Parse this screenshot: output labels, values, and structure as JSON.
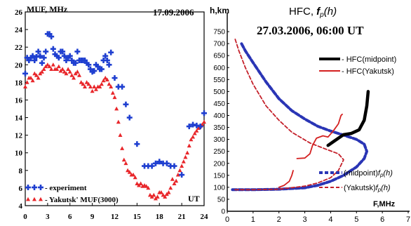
{
  "chart_data": [
    {
      "type": "scatter",
      "date": "17.09.2006",
      "ylabel": "MUF, MHz",
      "xlabel": "UT",
      "xlim": [
        0,
        24
      ],
      "ylim": [
        4,
        26
      ],
      "xticks": [
        "0",
        "3",
        "6",
        "9",
        "12",
        "15",
        "18",
        "21",
        "24"
      ],
      "yticks": [
        "4",
        "6",
        "8",
        "10",
        "12",
        "14",
        "16",
        "18",
        "20",
        "22",
        "24",
        "26"
      ],
      "grid": false,
      "legend_position": "bottom-left",
      "series": [
        {
          "name": "- experiment",
          "marker": "plus",
          "color": "#1f3fd0",
          "x": [
            0.0,
            0.25,
            0.5,
            0.75,
            1.0,
            1.25,
            1.5,
            1.75,
            2.0,
            2.25,
            2.5,
            2.75,
            3.0,
            3.25,
            3.5,
            3.75,
            4.0,
            4.25,
            4.5,
            4.75,
            5.0,
            5.25,
            5.5,
            5.75,
            6.0,
            6.25,
            6.5,
            6.75,
            7.0,
            7.25,
            7.5,
            7.75,
            8.0,
            8.25,
            8.5,
            8.75,
            9.0,
            9.25,
            9.5,
            9.75,
            10.0,
            10.25,
            10.5,
            10.75,
            11.0,
            11.25,
            11.5,
            12.0,
            12.5,
            13.0,
            13.5,
            14.0,
            15.0,
            16.0,
            16.5,
            17.0,
            17.5,
            18.0,
            18.5,
            19.0,
            19.5,
            20.0,
            21.0,
            22.0,
            22.5,
            23.0,
            23.5,
            24.0
          ],
          "y": [
            19.0,
            20.8,
            20.5,
            20.8,
            21.0,
            20.5,
            20.9,
            21.5,
            21.0,
            20.2,
            20.8,
            21.5,
            23.5,
            23.5,
            23.2,
            21.8,
            21.2,
            21.0,
            20.8,
            21.5,
            21.5,
            21.0,
            20.5,
            20.8,
            21.0,
            20.5,
            20.2,
            20.2,
            21.5,
            20.5,
            20.5,
            20.5,
            20.5,
            20.2,
            20.0,
            19.5,
            19.2,
            19.3,
            20.0,
            19.8,
            19.5,
            19.5,
            20.5,
            21.0,
            20.5,
            20.0,
            21.4,
            18.5,
            17.5,
            17.5,
            15.5,
            14.0,
            11.0,
            8.5,
            8.5,
            8.5,
            8.8,
            9.0,
            8.8,
            8.8,
            8.5,
            8.5,
            7.5,
            13.0,
            13.2,
            13.1,
            13.0,
            14.5
          ]
        },
        {
          "name": "- Yakutsk' MUF(3000)",
          "marker": "triangle",
          "color": "#e8262a",
          "x": [
            0.0,
            0.25,
            0.5,
            0.75,
            1.0,
            1.25,
            1.5,
            1.75,
            2.0,
            2.25,
            2.5,
            2.75,
            3.0,
            3.25,
            3.5,
            3.75,
            4.0,
            4.25,
            4.5,
            4.75,
            5.0,
            5.25,
            5.5,
            5.75,
            6.0,
            6.25,
            6.5,
            6.75,
            7.0,
            7.25,
            7.5,
            7.75,
            8.0,
            8.25,
            8.5,
            8.75,
            9.0,
            9.25,
            9.5,
            9.75,
            10.0,
            10.25,
            10.5,
            10.75,
            11.0,
            11.25,
            11.5,
            11.75,
            12.0,
            12.25,
            12.5,
            12.75,
            13.0,
            13.25,
            13.5,
            13.75,
            14.0,
            14.25,
            14.5,
            14.75,
            15.0,
            15.25,
            15.5,
            15.75,
            16.0,
            16.25,
            16.5,
            16.75,
            17.0,
            17.25,
            17.5,
            17.75,
            18.0,
            18.25,
            18.5,
            18.75,
            19.0,
            19.25,
            19.5,
            19.75,
            20.0,
            20.25,
            20.5,
            20.75,
            21.0,
            21.25,
            21.5,
            21.75,
            22.0,
            22.25,
            22.5,
            22.75,
            23.0,
            23.25,
            23.5,
            23.75,
            24.0
          ],
          "y": [
            17.5,
            18.0,
            18.5,
            18.5,
            18.2,
            19.0,
            18.8,
            18.5,
            19.0,
            19.2,
            19.5,
            19.8,
            20.0,
            19.8,
            19.5,
            20.0,
            19.5,
            19.5,
            19.8,
            19.3,
            19.5,
            19.2,
            19.0,
            19.5,
            19.2,
            18.8,
            18.5,
            19.0,
            19.2,
            18.8,
            18.0,
            17.8,
            17.5,
            18.0,
            17.8,
            17.5,
            17.0,
            17.5,
            17.2,
            17.5,
            17.5,
            17.8,
            18.2,
            18.5,
            18.3,
            17.8,
            17.5,
            16.8,
            16.3,
            15.0,
            13.5,
            12.0,
            10.5,
            9.2,
            8.8,
            8.0,
            7.8,
            7.5,
            7.5,
            7.2,
            6.5,
            6.3,
            6.5,
            6.2,
            6.3,
            6.2,
            6.0,
            5.2,
            5.0,
            5.2,
            4.8,
            5.0,
            5.5,
            5.5,
            5.2,
            5.0,
            5.3,
            5.5,
            6.0,
            7.0,
            6.5,
            6.8,
            7.5,
            8.0,
            8.5,
            9.0,
            9.5,
            10.0,
            10.8,
            11.5,
            11.8,
            12.2,
            12.5,
            12.8,
            13.0,
            13.2,
            13.5
          ]
        }
      ]
    },
    {
      "type": "line",
      "title_prefix": "HFC, ",
      "title_fp": "f",
      "title_fp_sub": "p",
      "title_h": "(h)",
      "subtitle": "27.03.2006, 06:00 UT",
      "ylabel": "h,km",
      "xlabel": "F,MHz",
      "xlim": [
        0,
        7
      ],
      "ylim": [
        0,
        800
      ],
      "xticks": [
        "0",
        "1",
        "2",
        "3",
        "4",
        "5",
        "6",
        "7"
      ],
      "yticks": [
        "0",
        "50",
        "100",
        "150",
        "200",
        "250",
        "300",
        "350",
        "400",
        "450",
        "500",
        "550",
        "600",
        "650",
        "700",
        "750"
      ],
      "grid": false,
      "legend_position": "right",
      "series": [
        {
          "name": "- HFC(midpoint)",
          "style": "solid-thick",
          "color": "#000000",
          "points": [
            [
              3.9,
              275
            ],
            [
              4.1,
              290
            ],
            [
              4.3,
              305
            ],
            [
              4.5,
              320
            ],
            [
              4.8,
              325
            ],
            [
              5.1,
              340
            ],
            [
              5.3,
              380
            ],
            [
              5.4,
              440
            ],
            [
              5.45,
              500
            ]
          ]
        },
        {
          "name": "- HFC(Yakutsk)",
          "style": "solid",
          "color": "#d42020",
          "segments": [
            [
              [
                2.0,
                100
              ],
              [
                2.2,
                108
              ],
              [
                2.4,
                125
              ],
              [
                2.5,
                150
              ],
              [
                2.55,
                170
              ]
            ],
            [
              [
                2.7,
                220
              ],
              [
                3.0,
                222
              ],
              [
                3.2,
                240
              ],
              [
                3.3,
                275
              ],
              [
                3.45,
                305
              ],
              [
                3.7,
                315
              ],
              [
                3.9,
                310
              ],
              [
                4.1,
                335
              ],
              [
                4.3,
                365
              ],
              [
                4.4,
                400
              ],
              [
                4.45,
                405
              ]
            ]
          ]
        },
        {
          "name_prefix": "(midpoint)",
          "name_f": "f",
          "name_sub": "p",
          "name_h": "(h)",
          "style": "dashed-thick",
          "color": "#2a35b5",
          "points": [
            [
              0.2,
              90
            ],
            [
              1.0,
              90
            ],
            [
              2.0,
              92
            ],
            [
              3.0,
              98
            ],
            [
              3.5,
              108
            ],
            [
              4.0,
              125
            ],
            [
              4.5,
              150
            ],
            [
              5.0,
              185
            ],
            [
              5.3,
              220
            ],
            [
              5.4,
              250
            ],
            [
              5.3,
              280
            ],
            [
              5.0,
              300
            ],
            [
              4.5,
              318
            ],
            [
              4.0,
              335
            ],
            [
              3.5,
              355
            ],
            [
              3.0,
              385
            ],
            [
              2.5,
              420
            ],
            [
              2.0,
              470
            ],
            [
              1.5,
              540
            ],
            [
              1.0,
              620
            ],
            [
              0.7,
              670
            ],
            [
              0.55,
              700
            ]
          ]
        },
        {
          "name_prefix": "(Yakutsk)",
          "name_f": "f",
          "name_sub": "p",
          "name_h": "(h)",
          "style": "dashed",
          "color": "#c4202a",
          "points": [
            [
              0.3,
              90
            ],
            [
              1.0,
              90
            ],
            [
              2.0,
              92
            ],
            [
              3.0,
              105
            ],
            [
              3.5,
              118
            ],
            [
              4.0,
              140
            ],
            [
              4.3,
              170
            ],
            [
              4.5,
              215
            ],
            [
              4.3,
              240
            ],
            [
              3.8,
              260
            ],
            [
              3.2,
              285
            ],
            [
              2.5,
              330
            ],
            [
              2.0,
              380
            ],
            [
              1.5,
              440
            ],
            [
              1.0,
              530
            ],
            [
              0.7,
              600
            ],
            [
              0.45,
              670
            ],
            [
              0.3,
              720
            ]
          ]
        }
      ]
    }
  ]
}
